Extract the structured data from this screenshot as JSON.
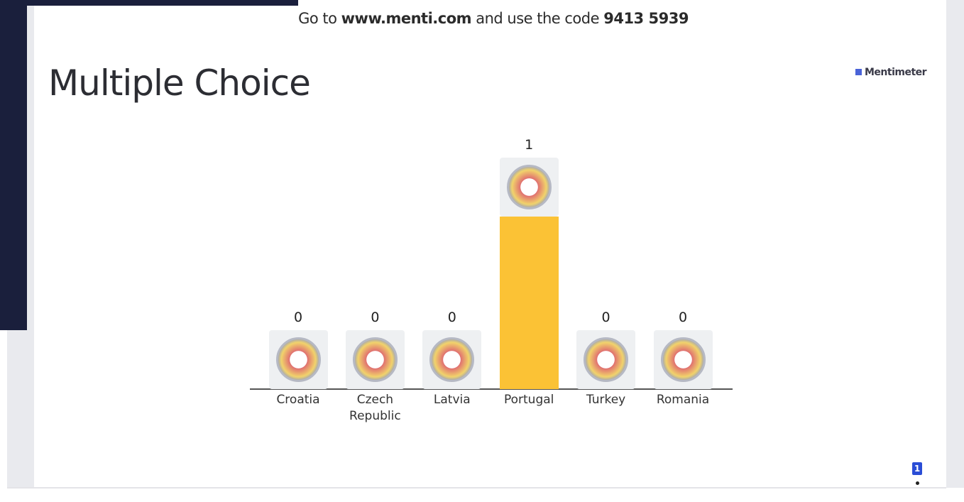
{
  "header": {
    "intro": "Go to",
    "url": "www.menti.com",
    "middle": "and use the code",
    "code": "9413 5939"
  },
  "brand": "Mentimeter",
  "responses": 1,
  "chart_data": {
    "type": "bar",
    "title": "Multiple Choice",
    "categories": [
      "Croatia",
      "Czech Republic",
      "Latvia",
      "Portugal",
      "Turkey",
      "Romania"
    ],
    "values": [
      0,
      0,
      0,
      1,
      0,
      0
    ],
    "color": "#fbc235"
  }
}
